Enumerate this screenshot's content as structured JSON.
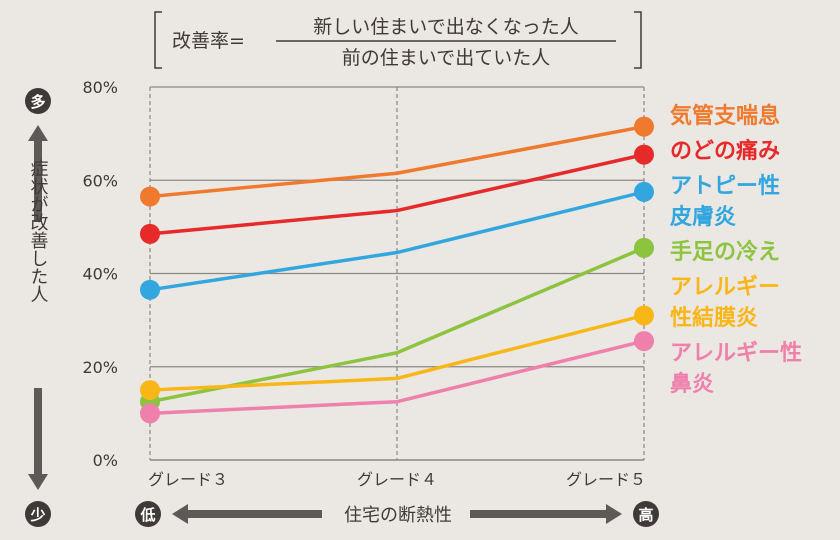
{
  "formula": {
    "prefix": "改善率=",
    "numerator": "新しい住まいで出なくなった人",
    "denominator": "前の住まいで出ていた人"
  },
  "y_axis": {
    "label": "症状が改善した人",
    "top_badge": "多",
    "bottom_badge": "少"
  },
  "x_axis": {
    "label": "住宅の断熱性",
    "left_badge": "低",
    "right_badge": "高"
  },
  "colors": {
    "background": "#ebe7e3",
    "grid": "#8a8785",
    "badge": "#3f3a38",
    "text": "#3f3a38"
  },
  "chart_data": {
    "type": "line",
    "categories": [
      "グレード３",
      "グレード４",
      "グレード５"
    ],
    "ylim": [
      0,
      80
    ],
    "yticks": [
      0,
      20,
      40,
      60,
      80
    ],
    "ytick_labels": [
      "0%",
      "20%",
      "40%",
      "60%",
      "80%"
    ],
    "ylabel": "症状が改善した人",
    "xlabel": "住宅の断熱性",
    "legend_position": "right",
    "series": [
      {
        "name": "気管支喘息",
        "label_lines": [
          "気管支喘息"
        ],
        "color": "#ef7a2e",
        "values": [
          56.5,
          61.5,
          71.5
        ]
      },
      {
        "name": "のどの痛み",
        "label_lines": [
          "のどの痛み"
        ],
        "color": "#e62a2a",
        "values": [
          48.5,
          53.5,
          65.5
        ]
      },
      {
        "name": "アトピー性皮膚炎",
        "label_lines": [
          "アトピー性",
          "皮膚炎"
        ],
        "color": "#32a6df",
        "values": [
          36.5,
          44.5,
          57.5
        ]
      },
      {
        "name": "手足の冷え",
        "label_lines": [
          "手足の冷え"
        ],
        "color": "#8dc43f",
        "values": [
          12.5,
          23,
          45.5
        ]
      },
      {
        "name": "アレルギー性結膜炎",
        "label_lines": [
          "アレルギー",
          "性結膜炎"
        ],
        "color": "#f9b717",
        "values": [
          15,
          17.5,
          31
        ]
      },
      {
        "name": "アレルギー性鼻炎",
        "label_lines": [
          "アレルギー性",
          "鼻炎"
        ],
        "color": "#ef80ab",
        "values": [
          10,
          12.5,
          25.5
        ]
      }
    ]
  }
}
